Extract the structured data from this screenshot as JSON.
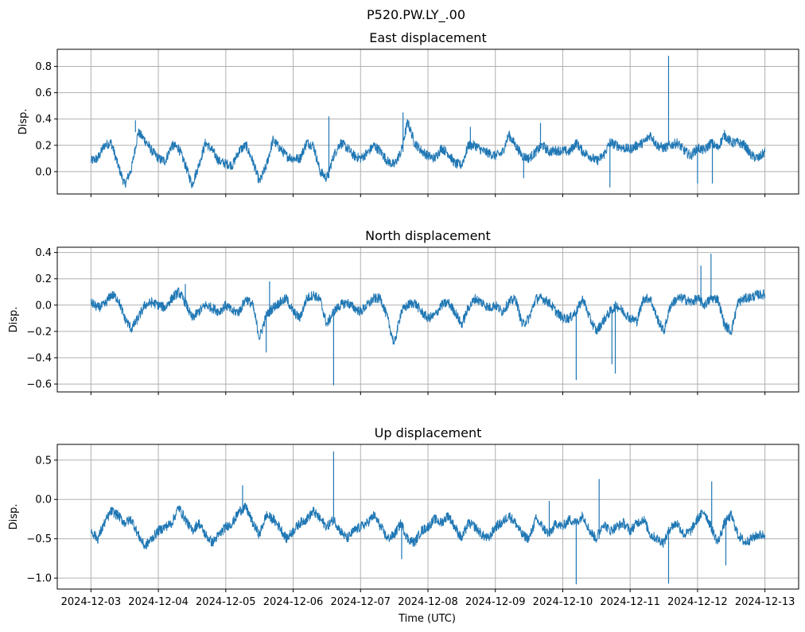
{
  "suptitle": "P520.PW.LY_.00",
  "xlabel": "Time (UTC)",
  "series_color": "#1f77b4",
  "grid_color": "#b0b0b0",
  "chart_data": [
    {
      "type": "line",
      "title": "East displacement",
      "ylabel": "Disp.",
      "xlabel": "",
      "ylim": [
        -0.17,
        0.93
      ],
      "yticks": [
        0.0,
        0.2,
        0.4,
        0.6,
        0.8
      ],
      "ytick_labels": [
        "0.0",
        "0.2",
        "0.4",
        "0.6",
        "0.8"
      ],
      "xlim": [
        -0.5,
        10.5
      ],
      "grid": true,
      "x_unit": "days since 2024-12-03 00:00 UTC",
      "x": [
        0.0,
        0.1,
        0.2,
        0.3,
        0.4,
        0.5,
        0.6,
        0.7,
        0.8,
        0.9,
        1.0,
        1.1,
        1.2,
        1.3,
        1.4,
        1.5,
        1.6,
        1.7,
        1.8,
        1.9,
        2.0,
        2.1,
        2.2,
        2.3,
        2.4,
        2.5,
        2.6,
        2.7,
        2.8,
        2.9,
        3.0,
        3.1,
        3.2,
        3.3,
        3.4,
        3.5,
        3.6,
        3.7,
        3.8,
        3.9,
        4.0,
        4.1,
        4.2,
        4.3,
        4.4,
        4.5,
        4.6,
        4.7,
        4.8,
        4.9,
        5.0,
        5.1,
        5.2,
        5.3,
        5.4,
        5.5,
        5.6,
        5.7,
        5.8,
        5.9,
        6.0,
        6.1,
        6.2,
        6.3,
        6.4,
        6.5,
        6.6,
        6.7,
        6.8,
        6.9,
        7.0,
        7.1,
        7.2,
        7.3,
        7.4,
        7.5,
        7.6,
        7.7,
        7.8,
        7.9,
        8.0,
        8.1,
        8.2,
        8.3,
        8.4,
        8.5,
        8.6,
        8.7,
        8.8,
        8.9,
        9.0,
        9.1,
        9.2,
        9.3,
        9.4,
        9.5,
        9.6,
        9.7,
        9.8,
        9.9,
        10.0
      ],
      "y": [
        0.08,
        0.1,
        0.2,
        0.22,
        0.05,
        -0.1,
        0.02,
        0.3,
        0.24,
        0.16,
        0.1,
        0.08,
        0.2,
        0.18,
        0.05,
        -0.1,
        0.05,
        0.22,
        0.16,
        0.08,
        0.06,
        0.05,
        0.16,
        0.2,
        0.08,
        -0.08,
        0.04,
        0.24,
        0.18,
        0.12,
        0.1,
        0.1,
        0.22,
        0.2,
        0.0,
        -0.05,
        0.12,
        0.22,
        0.18,
        0.12,
        0.1,
        0.14,
        0.2,
        0.15,
        0.08,
        0.05,
        0.15,
        0.38,
        0.22,
        0.16,
        0.12,
        0.1,
        0.18,
        0.14,
        0.06,
        0.05,
        0.2,
        0.2,
        0.16,
        0.14,
        0.12,
        0.14,
        0.28,
        0.2,
        0.12,
        0.1,
        0.15,
        0.2,
        0.15,
        0.16,
        0.16,
        0.15,
        0.22,
        0.15,
        0.12,
        0.08,
        0.12,
        0.22,
        0.2,
        0.18,
        0.17,
        0.2,
        0.22,
        0.28,
        0.2,
        0.18,
        0.2,
        0.22,
        0.16,
        0.12,
        0.18,
        0.16,
        0.22,
        0.18,
        0.28,
        0.22,
        0.22,
        0.2,
        0.12,
        0.1,
        0.15
      ],
      "spikes": [
        {
          "x": 8.57,
          "y": 0.88
        },
        {
          "x": 7.7,
          "y": -0.12
        },
        {
          "x": 9.0,
          "y": -0.09
        },
        {
          "x": 9.22,
          "y": -0.09
        },
        {
          "x": 6.42,
          "y": -0.05
        },
        {
          "x": 3.53,
          "y": 0.42
        },
        {
          "x": 4.63,
          "y": 0.45
        },
        {
          "x": 0.66,
          "y": 0.39
        },
        {
          "x": 5.63,
          "y": 0.34
        },
        {
          "x": 6.67,
          "y": 0.37
        }
      ]
    },
    {
      "type": "line",
      "title": "North displacement",
      "ylabel": "Disp.",
      "xlabel": "",
      "ylim": [
        -0.66,
        0.44
      ],
      "yticks": [
        -0.6,
        -0.4,
        -0.2,
        0.0,
        0.2,
        0.4
      ],
      "ytick_labels": [
        "−0.6",
        "−0.4",
        "−0.2",
        "0.0",
        "0.2",
        "0.4"
      ],
      "xlim": [
        -0.5,
        10.5
      ],
      "grid": true,
      "x_unit": "days since 2024-12-03 00:00 UTC",
      "x": [
        0.0,
        0.1,
        0.2,
        0.3,
        0.4,
        0.5,
        0.6,
        0.7,
        0.8,
        0.9,
        1.0,
        1.1,
        1.2,
        1.3,
        1.4,
        1.5,
        1.6,
        1.7,
        1.8,
        1.9,
        2.0,
        2.1,
        2.2,
        2.3,
        2.4,
        2.5,
        2.6,
        2.7,
        2.8,
        2.9,
        3.0,
        3.1,
        3.2,
        3.3,
        3.4,
        3.5,
        3.6,
        3.7,
        3.8,
        3.9,
        4.0,
        4.1,
        4.2,
        4.3,
        4.4,
        4.5,
        4.6,
        4.7,
        4.8,
        4.9,
        5.0,
        5.1,
        5.2,
        5.3,
        5.4,
        5.5,
        5.6,
        5.7,
        5.8,
        5.9,
        6.0,
        6.1,
        6.2,
        6.3,
        6.4,
        6.5,
        6.6,
        6.7,
        6.8,
        6.9,
        7.0,
        7.1,
        7.2,
        7.3,
        7.4,
        7.5,
        7.6,
        7.7,
        7.8,
        7.9,
        8.0,
        8.1,
        8.2,
        8.3,
        8.4,
        8.5,
        8.6,
        8.7,
        8.8,
        8.9,
        9.0,
        9.1,
        9.2,
        9.3,
        9.4,
        9.5,
        9.6,
        9.7,
        9.8,
        9.9,
        10.0
      ],
      "y": [
        0.02,
        -0.02,
        0.0,
        0.08,
        0.05,
        -0.1,
        -0.18,
        -0.1,
        0.0,
        0.02,
        0.0,
        -0.02,
        0.05,
        0.1,
        0.02,
        -0.1,
        -0.05,
        0.0,
        -0.02,
        -0.05,
        0.0,
        -0.05,
        -0.05,
        0.05,
        0.0,
        -0.25,
        -0.08,
        -0.02,
        0.02,
        0.05,
        -0.05,
        -0.1,
        0.05,
        0.08,
        0.04,
        -0.15,
        -0.05,
        0.0,
        0.02,
        -0.02,
        -0.05,
        0.0,
        0.05,
        0.05,
        -0.1,
        -0.3,
        -0.05,
        0.0,
        0.02,
        -0.05,
        -0.1,
        -0.08,
        0.0,
        0.02,
        -0.05,
        -0.15,
        -0.02,
        0.05,
        0.02,
        -0.02,
        0.0,
        -0.05,
        0.02,
        0.05,
        -0.15,
        -0.1,
        0.05,
        0.05,
        0.02,
        -0.05,
        -0.1,
        -0.1,
        -0.05,
        0.05,
        -0.1,
        -0.2,
        -0.12,
        -0.05,
        0.0,
        -0.05,
        -0.1,
        -0.12,
        0.05,
        0.05,
        -0.1,
        -0.2,
        0.0,
        0.05,
        0.05,
        0.02,
        0.05,
        0.0,
        0.05,
        0.05,
        -0.15,
        -0.2,
        0.02,
        0.05,
        0.06,
        0.08,
        0.08
      ],
      "spikes": [
        {
          "x": 3.6,
          "y": -0.61
        },
        {
          "x": 7.2,
          "y": -0.57
        },
        {
          "x": 7.78,
          "y": -0.52
        },
        {
          "x": 7.73,
          "y": -0.45
        },
        {
          "x": 2.6,
          "y": -0.36
        },
        {
          "x": 9.2,
          "y": 0.39
        },
        {
          "x": 9.05,
          "y": 0.3
        },
        {
          "x": 2.65,
          "y": 0.18
        },
        {
          "x": 1.4,
          "y": 0.16
        }
      ]
    },
    {
      "type": "line",
      "title": "Up displacement",
      "ylabel": "Disp.",
      "xlabel": "Time (UTC)",
      "ylim": [
        -1.14,
        0.7
      ],
      "yticks": [
        -1.0,
        -0.5,
        0.0,
        0.5
      ],
      "ytick_labels": [
        "−1.0",
        "−0.5",
        "0.0",
        "0.5"
      ],
      "xlim": [
        -0.5,
        10.5
      ],
      "grid": true,
      "x_unit": "days since 2024-12-03 00:00 UTC",
      "x_tick_positions": [
        0,
        1,
        2,
        3,
        4,
        5,
        6,
        7,
        8,
        9,
        10
      ],
      "x_tick_labels": [
        "2024-12-03",
        "2024-12-04",
        "2024-12-05",
        "2024-12-06",
        "2024-12-07",
        "2024-12-08",
        "2024-12-09",
        "2024-12-10",
        "2024-12-11",
        "2024-12-12",
        "2024-12-13"
      ],
      "x": [
        0.0,
        0.1,
        0.2,
        0.3,
        0.4,
        0.5,
        0.6,
        0.7,
        0.8,
        0.9,
        1.0,
        1.1,
        1.2,
        1.3,
        1.4,
        1.5,
        1.6,
        1.7,
        1.8,
        1.9,
        2.0,
        2.1,
        2.2,
        2.3,
        2.4,
        2.5,
        2.6,
        2.7,
        2.8,
        2.9,
        3.0,
        3.1,
        3.2,
        3.3,
        3.4,
        3.5,
        3.6,
        3.7,
        3.8,
        3.9,
        4.0,
        4.1,
        4.2,
        4.3,
        4.4,
        4.5,
        4.6,
        4.7,
        4.8,
        4.9,
        5.0,
        5.1,
        5.2,
        5.3,
        5.4,
        5.5,
        5.6,
        5.7,
        5.8,
        5.9,
        6.0,
        6.1,
        6.2,
        6.3,
        6.4,
        6.5,
        6.6,
        6.7,
        6.8,
        6.9,
        7.0,
        7.1,
        7.2,
        7.3,
        7.4,
        7.5,
        7.6,
        7.7,
        7.8,
        7.9,
        8.0,
        8.1,
        8.2,
        8.3,
        8.4,
        8.5,
        8.6,
        8.7,
        8.8,
        8.9,
        9.0,
        9.1,
        9.2,
        9.3,
        9.4,
        9.5,
        9.6,
        9.7,
        9.8,
        9.9,
        10.0
      ],
      "y": [
        -0.4,
        -0.5,
        -0.3,
        -0.15,
        -0.2,
        -0.3,
        -0.25,
        -0.45,
        -0.6,
        -0.5,
        -0.4,
        -0.35,
        -0.3,
        -0.1,
        -0.25,
        -0.4,
        -0.3,
        -0.45,
        -0.55,
        -0.45,
        -0.35,
        -0.3,
        -0.15,
        -0.1,
        -0.3,
        -0.45,
        -0.2,
        -0.25,
        -0.35,
        -0.5,
        -0.4,
        -0.3,
        -0.25,
        -0.15,
        -0.25,
        -0.35,
        -0.25,
        -0.4,
        -0.5,
        -0.4,
        -0.35,
        -0.3,
        -0.2,
        -0.35,
        -0.5,
        -0.45,
        -0.3,
        -0.5,
        -0.55,
        -0.4,
        -0.35,
        -0.25,
        -0.3,
        -0.2,
        -0.35,
        -0.5,
        -0.3,
        -0.35,
        -0.45,
        -0.5,
        -0.35,
        -0.3,
        -0.2,
        -0.3,
        -0.45,
        -0.5,
        -0.25,
        -0.35,
        -0.45,
        -0.3,
        -0.35,
        -0.25,
        -0.3,
        -0.2,
        -0.4,
        -0.5,
        -0.3,
        -0.4,
        -0.35,
        -0.3,
        -0.4,
        -0.3,
        -0.25,
        -0.45,
        -0.5,
        -0.55,
        -0.35,
        -0.3,
        -0.45,
        -0.4,
        -0.25,
        -0.15,
        -0.35,
        -0.55,
        -0.3,
        -0.2,
        -0.45,
        -0.55,
        -0.5,
        -0.45,
        -0.45
      ],
      "spikes": [
        {
          "x": 3.6,
          "y": 0.61
        },
        {
          "x": 2.25,
          "y": 0.18
        },
        {
          "x": 7.54,
          "y": 0.26
        },
        {
          "x": 9.21,
          "y": 0.23
        },
        {
          "x": 7.2,
          "y": -1.08
        },
        {
          "x": 8.57,
          "y": -1.07
        },
        {
          "x": 9.42,
          "y": -0.84
        },
        {
          "x": 4.61,
          "y": -0.76
        },
        {
          "x": 6.8,
          "y": -0.02
        }
      ]
    }
  ]
}
